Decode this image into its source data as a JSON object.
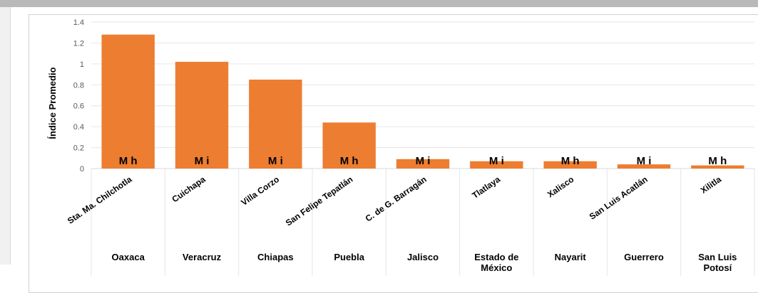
{
  "chart_data": {
    "type": "bar",
    "ylabel": "Índice Promedio",
    "ylim": [
      0,
      1.4
    ],
    "yticks": [
      "0",
      "0.2",
      "0.4",
      "0.6",
      "0.8",
      "1",
      "1.2",
      "1.4"
    ],
    "categories": [
      "Sta. Ma. Chilchotla",
      "Cuichapa",
      "Villa Corzo",
      "San Felipe Tepatlán",
      "C. de G. Barragán",
      "Tlatlaya",
      "Xalisco",
      "San Luis Acatlán",
      "Xilitla"
    ],
    "groups": [
      "Oaxaca",
      "Veracruz",
      "Chiapas",
      "Puebla",
      "Jalisco",
      "Estado de México",
      "Nayarit",
      "Guerrero",
      "San Luis Potosí"
    ],
    "values": [
      1.28,
      1.02,
      0.85,
      0.44,
      0.09,
      0.07,
      0.07,
      0.04,
      0.03
    ],
    "labels": [
      "M h",
      "M i",
      "M i",
      "M h",
      "M i",
      "M i",
      "M h",
      "M i",
      "M h"
    ],
    "grid": true,
    "bar_color": "#ED7D31"
  }
}
